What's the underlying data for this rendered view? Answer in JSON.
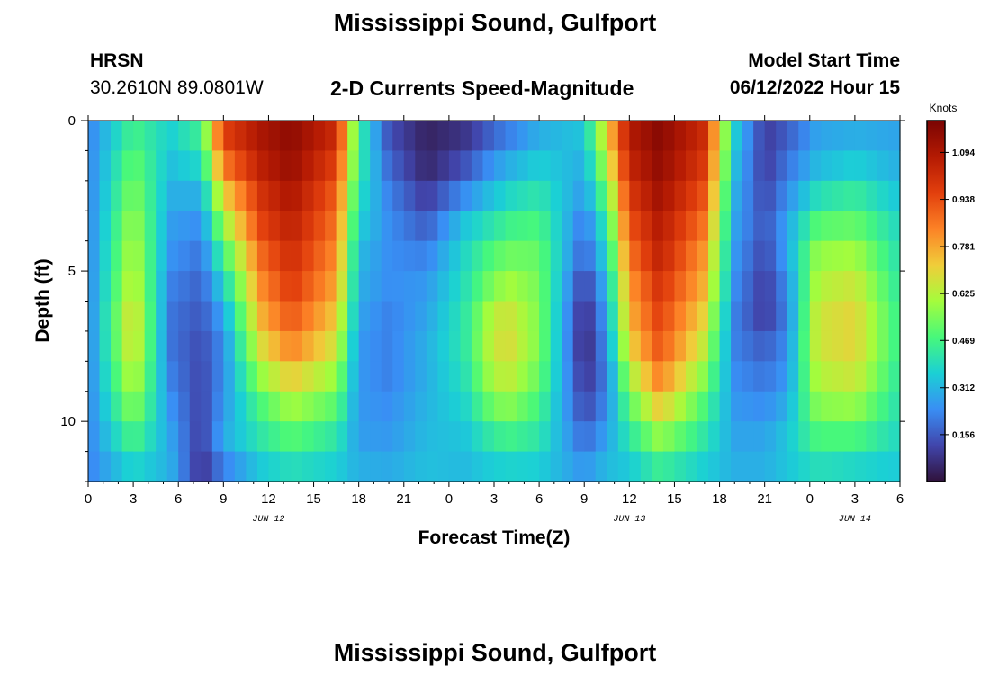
{
  "header": {
    "title": "Mississippi Sound, Gulfport",
    "station_code": "HRSN",
    "coordinates": "30.2610N  89.0801W",
    "subtitle": "2-D Currents Speed-Magnitude",
    "model_start_label": "Model Start Time",
    "model_start_value": "06/12/2022 Hour 15"
  },
  "footer": {
    "title": "Mississippi Sound, Gulfport"
  },
  "chart_data": {
    "type": "heatmap",
    "title": "2-D Currents Speed-Magnitude",
    "xlabel": "Forecast Time(Z)",
    "ylabel": "Depth (ft)",
    "x_unit": "hours since JUN 12 00Z",
    "xlim": [
      0,
      54
    ],
    "ylim": [
      0,
      12
    ],
    "x_tick_values": [
      0,
      3,
      6,
      9,
      12,
      15,
      18,
      21,
      24,
      27,
      30,
      33,
      36,
      39,
      42,
      45,
      48,
      51,
      54
    ],
    "x_tick_labels": [
      "0",
      "3",
      "6",
      "9",
      "12",
      "15",
      "18",
      "21",
      "0",
      "3",
      "6",
      "9",
      "12",
      "15",
      "18",
      "21",
      "0",
      "3",
      "6"
    ],
    "y_tick_values": [
      0,
      5,
      10
    ],
    "y_tick_labels": [
      "0",
      "5",
      "10"
    ],
    "date_labels": [
      {
        "label": "JUN 12",
        "x": 12
      },
      {
        "label": "JUN 13",
        "x": 36
      },
      {
        "label": "JUN 14",
        "x": 51
      }
    ],
    "colorbar": {
      "unit": "Knots",
      "min": 0.0,
      "max": 1.2,
      "tick_values": [
        1.094,
        0.938,
        0.781,
        0.625,
        0.469,
        0.312,
        0.156
      ],
      "tick_labels": [
        "1.094",
        "0.938",
        "0.781",
        "0.625",
        "0.469",
        "0.312",
        "0.156"
      ]
    },
    "depth_levels_ft": [
      0.5,
      1.5,
      2.5,
      3.5,
      4.5,
      5.5,
      6.5,
      7.5,
      8.5,
      9.5,
      10.5,
      11.5
    ],
    "keyframes": [
      {
        "t": 0.0,
        "speeds": [
          0.22,
          0.22,
          0.22,
          0.22,
          0.22,
          0.22,
          0.22,
          0.22,
          0.22,
          0.22,
          0.22,
          0.22
        ]
      },
      {
        "t": 3.0,
        "speeds": [
          0.47,
          0.52,
          0.56,
          0.6,
          0.63,
          0.66,
          0.7,
          0.69,
          0.64,
          0.57,
          0.48,
          0.38
        ]
      },
      {
        "t": 5.5,
        "speeds": [
          0.36,
          0.33,
          0.3,
          0.27,
          0.25,
          0.22,
          0.2,
          0.2,
          0.22,
          0.25,
          0.28,
          0.3
        ]
      },
      {
        "t": 7.5,
        "speeds": [
          0.45,
          0.38,
          0.3,
          0.24,
          0.2,
          0.17,
          0.15,
          0.13,
          0.12,
          0.11,
          0.1,
          0.08
        ]
      },
      {
        "t": 9.0,
        "speeds": [
          0.96,
          0.85,
          0.7,
          0.58,
          0.46,
          0.36,
          0.28,
          0.24,
          0.24,
          0.26,
          0.29,
          0.22
        ]
      },
      {
        "t": 11.5,
        "speeds": [
          1.1,
          1.06,
          1.0,
          0.95,
          0.88,
          0.82,
          0.76,
          0.68,
          0.58,
          0.48,
          0.42,
          0.35
        ]
      },
      {
        "t": 13.5,
        "speeds": [
          1.16,
          1.14,
          1.1,
          1.06,
          1.02,
          0.98,
          0.92,
          0.84,
          0.72,
          0.6,
          0.5,
          0.4
        ]
      },
      {
        "t": 16.5,
        "speeds": [
          1.02,
          0.96,
          0.9,
          0.86,
          0.82,
          0.78,
          0.72,
          0.66,
          0.58,
          0.5,
          0.42,
          0.36
        ]
      },
      {
        "t": 18.0,
        "speeds": [
          0.45,
          0.44,
          0.4,
          0.36,
          0.32,
          0.3,
          0.28,
          0.26,
          0.26,
          0.26,
          0.27,
          0.3
        ]
      },
      {
        "t": 20.0,
        "speeds": [
          0.14,
          0.18,
          0.22,
          0.24,
          0.24,
          0.24,
          0.22,
          0.22,
          0.22,
          0.24,
          0.26,
          0.29
        ]
      },
      {
        "t": 22.5,
        "speeds": [
          0.04,
          0.05,
          0.1,
          0.16,
          0.22,
          0.26,
          0.28,
          0.3,
          0.3,
          0.31,
          0.32,
          0.33
        ]
      },
      {
        "t": 25.0,
        "speeds": [
          0.08,
          0.14,
          0.24,
          0.34,
          0.38,
          0.4,
          0.42,
          0.42,
          0.4,
          0.37,
          0.34,
          0.32
        ]
      },
      {
        "t": 27.0,
        "speeds": [
          0.18,
          0.26,
          0.34,
          0.42,
          0.5,
          0.56,
          0.64,
          0.66,
          0.62,
          0.54,
          0.44,
          0.36
        ]
      },
      {
        "t": 28.0,
        "speeds": [
          0.22,
          0.3,
          0.38,
          0.46,
          0.53,
          0.6,
          0.66,
          0.68,
          0.64,
          0.56,
          0.46,
          0.37
        ]
      },
      {
        "t": 30.0,
        "speeds": [
          0.3,
          0.36,
          0.42,
          0.48,
          0.52,
          0.54,
          0.55,
          0.55,
          0.52,
          0.47,
          0.42,
          0.36
        ]
      },
      {
        "t": 33.0,
        "speeds": [
          0.34,
          0.3,
          0.26,
          0.2,
          0.16,
          0.1,
          0.06,
          0.05,
          0.08,
          0.12,
          0.18,
          0.25
        ]
      },
      {
        "t": 34.5,
        "speeds": [
          0.7,
          0.62,
          0.52,
          0.44,
          0.38,
          0.32,
          0.28,
          0.25,
          0.22,
          0.24,
          0.28,
          0.32
        ]
      },
      {
        "t": 36.0,
        "speeds": [
          1.08,
          1.04,
          0.98,
          0.92,
          0.86,
          0.8,
          0.76,
          0.7,
          0.6,
          0.5,
          0.42,
          0.35
        ]
      },
      {
        "t": 38.0,
        "speeds": [
          1.17,
          1.15,
          1.12,
          1.08,
          1.05,
          1.0,
          0.96,
          0.92,
          0.84,
          0.72,
          0.58,
          0.45
        ]
      },
      {
        "t": 41.0,
        "speeds": [
          1.02,
          0.98,
          0.92,
          0.86,
          0.8,
          0.76,
          0.7,
          0.64,
          0.56,
          0.48,
          0.42,
          0.36
        ]
      },
      {
        "t": 43.0,
        "speeds": [
          0.36,
          0.33,
          0.3,
          0.28,
          0.26,
          0.24,
          0.22,
          0.22,
          0.24,
          0.26,
          0.28,
          0.3
        ]
      },
      {
        "t": 45.0,
        "speeds": [
          0.1,
          0.1,
          0.12,
          0.14,
          0.12,
          0.1,
          0.1,
          0.16,
          0.2,
          0.24,
          0.28,
          0.3
        ]
      },
      {
        "t": 46.5,
        "speeds": [
          0.16,
          0.2,
          0.24,
          0.28,
          0.28,
          0.24,
          0.22,
          0.24,
          0.26,
          0.3,
          0.34,
          0.34
        ]
      },
      {
        "t": 48.5,
        "speeds": [
          0.28,
          0.32,
          0.4,
          0.5,
          0.58,
          0.62,
          0.66,
          0.66,
          0.62,
          0.56,
          0.48,
          0.4
        ]
      },
      {
        "t": 51.0,
        "speeds": [
          0.3,
          0.36,
          0.44,
          0.52,
          0.6,
          0.66,
          0.7,
          0.7,
          0.66,
          0.58,
          0.48,
          0.38
        ]
      },
      {
        "t": 54.0,
        "speeds": [
          0.28,
          0.3,
          0.34,
          0.38,
          0.4,
          0.42,
          0.44,
          0.44,
          0.42,
          0.4,
          0.38,
          0.35
        ]
      }
    ]
  }
}
